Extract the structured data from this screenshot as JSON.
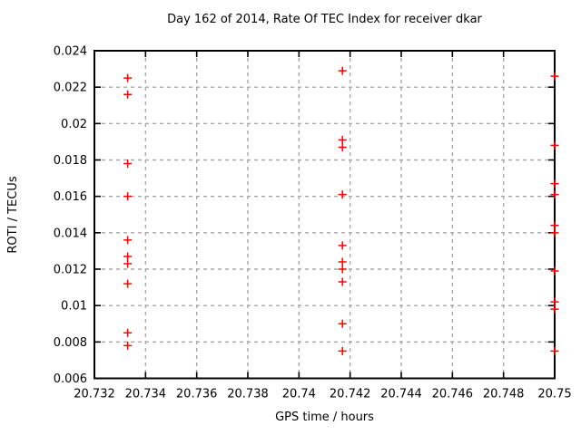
{
  "chart_data": {
    "type": "scatter",
    "title": "Day 162 of 2014, Rate Of TEC Index for receiver dkar",
    "xlabel": "GPS time / hours",
    "ylabel": "ROTI / TECUs",
    "xlim": [
      20.732,
      20.75
    ],
    "ylim": [
      0.006,
      0.024
    ],
    "xticks": [
      20.732,
      20.734,
      20.736,
      20.738,
      20.74,
      20.742,
      20.744,
      20.746,
      20.748,
      20.75
    ],
    "yticks": [
      0.006,
      0.008,
      0.01,
      0.012,
      0.014,
      0.016,
      0.018,
      0.02,
      0.022,
      0.024
    ],
    "xtick_labels": [
      "20.732",
      "20.734",
      "20.736",
      "20.738",
      "20.74",
      "20.742",
      "20.744",
      "20.746",
      "20.748",
      "20.75"
    ],
    "ytick_labels": [
      "0.006",
      "0.008",
      "0.01",
      "0.012",
      "0.014",
      "0.016",
      "0.018",
      "0.02",
      "0.022",
      "0.024"
    ],
    "grid": true,
    "legend": "none",
    "marker_shape": "plus",
    "colors": {
      "marker": "#ff0000",
      "grid": "#a8a8a8",
      "axis": "#000000",
      "background": "#ffffff"
    },
    "series": [
      {
        "name": "ROTI",
        "color": "#ff0000",
        "groups": [
          {
            "x": 20.7333,
            "y_values": [
              0.0225,
              0.0216,
              0.0178,
              0.016,
              0.0136,
              0.0127,
              0.0123,
              0.0112,
              0.0085,
              0.0078
            ]
          },
          {
            "x": 20.7417,
            "y_values": [
              0.0229,
              0.0191,
              0.0187,
              0.0161,
              0.0133,
              0.0124,
              0.012,
              0.0113,
              0.009,
              0.0075
            ]
          },
          {
            "x": 20.75,
            "y_values": [
              0.0226,
              0.0188,
              0.0167,
              0.0161,
              0.0144,
              0.014,
              0.0119,
              0.0102,
              0.0098,
              0.0075
            ]
          }
        ]
      }
    ]
  }
}
